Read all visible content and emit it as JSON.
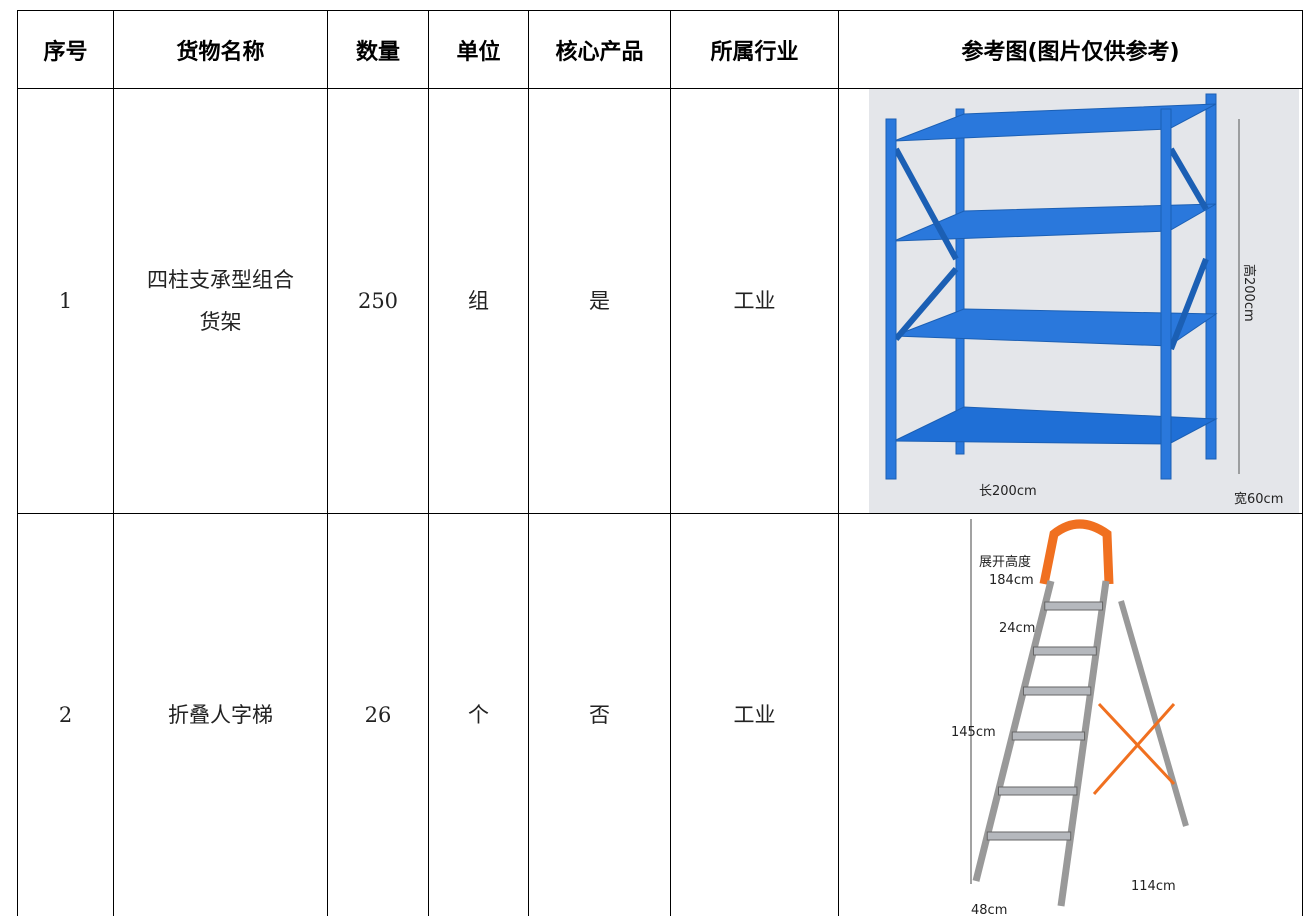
{
  "table": {
    "header": [
      "序号",
      "货物名称",
      "数量",
      "单位",
      "核心产品",
      "所属行业",
      "参考图(图片仅供参考)"
    ],
    "rows": [
      {
        "cells": [
          "1",
          "四柱支承型组合货架",
          "250",
          "组",
          "是",
          "工业"
        ],
        "image_labels": [
          "高200cm",
          "长200cm",
          "宽60cm"
        ]
      },
      {
        "cells": [
          "2",
          "折叠人字梯",
          "26",
          "个",
          "否",
          "工业"
        ],
        "image_labels": [
          "展开高度",
          "184cm",
          "24cm",
          "145cm",
          "114cm",
          "48cm"
        ]
      }
    ]
  }
}
